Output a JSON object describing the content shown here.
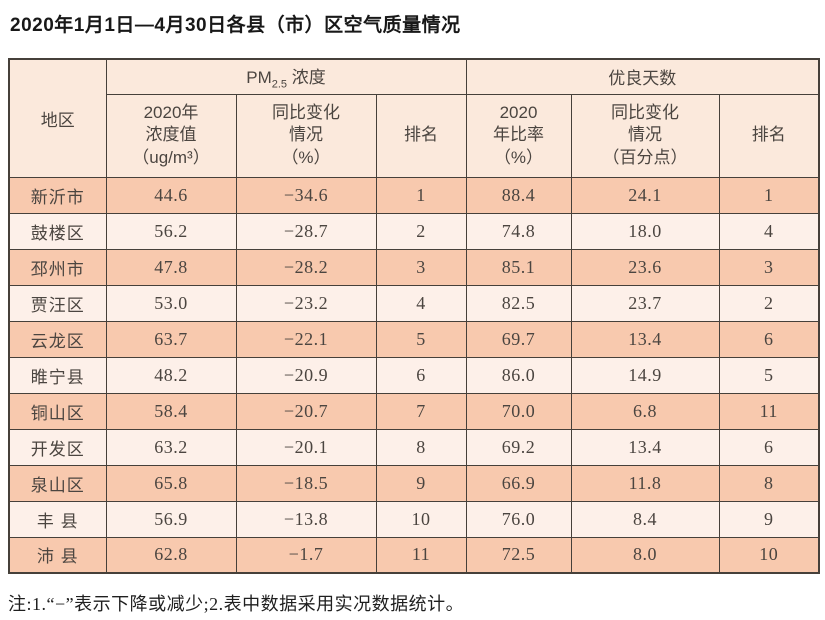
{
  "title": "2020年1月1日—4月30日各县（市）区空气质量情况",
  "note": "注:1.“−”表示下降或减少;2.表中数据采用实况数据统计。",
  "table": {
    "region_header": "地区",
    "pm25_group": {
      "base": "PM",
      "sub": "2.5",
      "rest": " 浓度"
    },
    "good_days_group": "优良天数",
    "sub_headers": {
      "pm_value": "2020年\n浓度值\n（ug/m³）",
      "pm_change": "同比变化\n情况\n（%）",
      "pm_rank": "排名",
      "days_rate": "2020\n年比率\n（%）",
      "days_change": "同比变化\n情况\n（百分点）",
      "days_rank": "排名"
    },
    "rows": [
      {
        "region": "新沂市",
        "pm_value": "44.6",
        "pm_change": "−34.6",
        "pm_rank": "1",
        "days_rate": "88.4",
        "days_change": "24.1",
        "days_rank": "1"
      },
      {
        "region": "鼓楼区",
        "pm_value": "56.2",
        "pm_change": "−28.7",
        "pm_rank": "2",
        "days_rate": "74.8",
        "days_change": "18.0",
        "days_rank": "4"
      },
      {
        "region": "邳州市",
        "pm_value": "47.8",
        "pm_change": "−28.2",
        "pm_rank": "3",
        "days_rate": "85.1",
        "days_change": "23.6",
        "days_rank": "3"
      },
      {
        "region": "贾汪区",
        "pm_value": "53.0",
        "pm_change": "−23.2",
        "pm_rank": "4",
        "days_rate": "82.5",
        "days_change": "23.7",
        "days_rank": "2"
      },
      {
        "region": "云龙区",
        "pm_value": "63.7",
        "pm_change": "−22.1",
        "pm_rank": "5",
        "days_rate": "69.7",
        "days_change": "13.4",
        "days_rank": "6"
      },
      {
        "region": "睢宁县",
        "pm_value": "48.2",
        "pm_change": "−20.9",
        "pm_rank": "6",
        "days_rate": "86.0",
        "days_change": "14.9",
        "days_rank": "5"
      },
      {
        "region": "铜山区",
        "pm_value": "58.4",
        "pm_change": "−20.7",
        "pm_rank": "7",
        "days_rate": "70.0",
        "days_change": "6.8",
        "days_rank": "11"
      },
      {
        "region": "开发区",
        "pm_value": "63.2",
        "pm_change": "−20.1",
        "pm_rank": "8",
        "days_rate": "69.2",
        "days_change": "13.4",
        "days_rank": "6"
      },
      {
        "region": "泉山区",
        "pm_value": "65.8",
        "pm_change": "−18.5",
        "pm_rank": "9",
        "days_rate": "66.9",
        "days_change": "11.8",
        "days_rank": "8"
      },
      {
        "region": "丰 县",
        "pm_value": "56.9",
        "pm_change": "−13.8",
        "pm_rank": "10",
        "days_rate": "76.0",
        "days_change": "8.4",
        "days_rank": "9"
      },
      {
        "region": "沛 县",
        "pm_value": "62.8",
        "pm_change": "−1.7",
        "pm_rank": "11",
        "days_rate": "72.5",
        "days_change": "8.0",
        "days_rank": "10"
      }
    ],
    "colors": {
      "row_salmon": "#f8c9ae",
      "row_light": "#fdf0e9",
      "header_bg": "#fbe9dc",
      "border": "#46403a"
    }
  }
}
